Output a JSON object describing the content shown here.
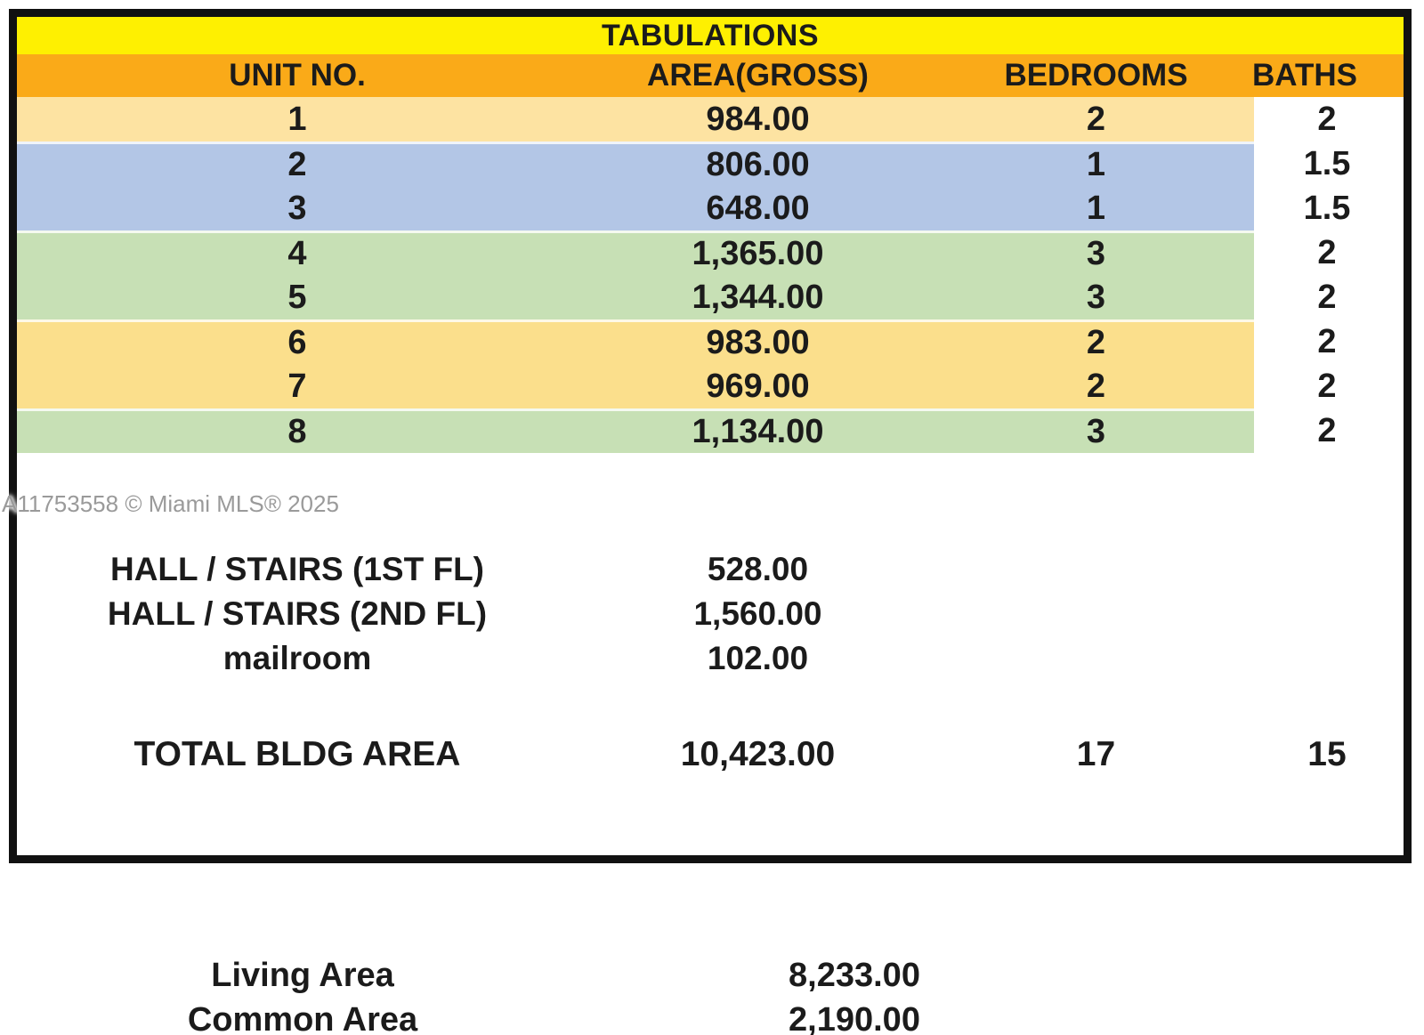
{
  "table": {
    "title": "TABULATIONS",
    "columns": {
      "unit": "UNIT NO.",
      "area": "AREA(GROSS)",
      "bedrooms": "BEDROOMS",
      "baths": "BATHS"
    },
    "units": [
      {
        "unit": "1",
        "area": "984.00",
        "bedrooms": "2",
        "baths": "2",
        "group": "tan"
      },
      {
        "unit": "2",
        "area": "806.00",
        "bedrooms": "1",
        "baths": "1.5",
        "group": "blue"
      },
      {
        "unit": "3",
        "area": "648.00",
        "bedrooms": "1",
        "baths": "1.5",
        "group": "blue"
      },
      {
        "unit": "4",
        "area": "1,365.00",
        "bedrooms": "3",
        "baths": "2",
        "group": "green"
      },
      {
        "unit": "5",
        "area": "1,344.00",
        "bedrooms": "3",
        "baths": "2",
        "group": "green"
      },
      {
        "unit": "6",
        "area": "983.00",
        "bedrooms": "2",
        "baths": "2",
        "group": "gold"
      },
      {
        "unit": "7",
        "area": "969.00",
        "bedrooms": "2",
        "baths": "2",
        "group": "gold"
      },
      {
        "unit": "8",
        "area": "1,134.00",
        "bedrooms": "3",
        "baths": "2",
        "group": "green"
      }
    ],
    "common_rows": [
      {
        "label": "HALL / STAIRS (1ST FL)",
        "area": "528.00"
      },
      {
        "label": "HALL / STAIRS (2ND FL)",
        "area": "1,560.00"
      },
      {
        "label": "mailroom",
        "area": "102.00"
      }
    ],
    "total_row": {
      "label": "TOTAL BLDG AREA",
      "area": "10,423.00",
      "bedrooms": "17",
      "baths": "15"
    }
  },
  "watermark": "A11753558 © Miami MLS® 2025",
  "summary": {
    "rows": [
      {
        "label": "Living Area",
        "value": "8,233.00"
      },
      {
        "label": "Common Area",
        "value": "2,190.00"
      }
    ]
  },
  "colors": {
    "css": {
      "title_bg": "#FEF001",
      "header_bg": "#FAAA18",
      "border": "#111111",
      "text": "#1B1B1B",
      "watermark": "#9A9A9A"
    },
    "row_groups": {
      "tan": "#FDE3A2",
      "blue": "#B3C6E6",
      "green": "#C7E0B5",
      "gold": "#FBDF8C"
    }
  }
}
